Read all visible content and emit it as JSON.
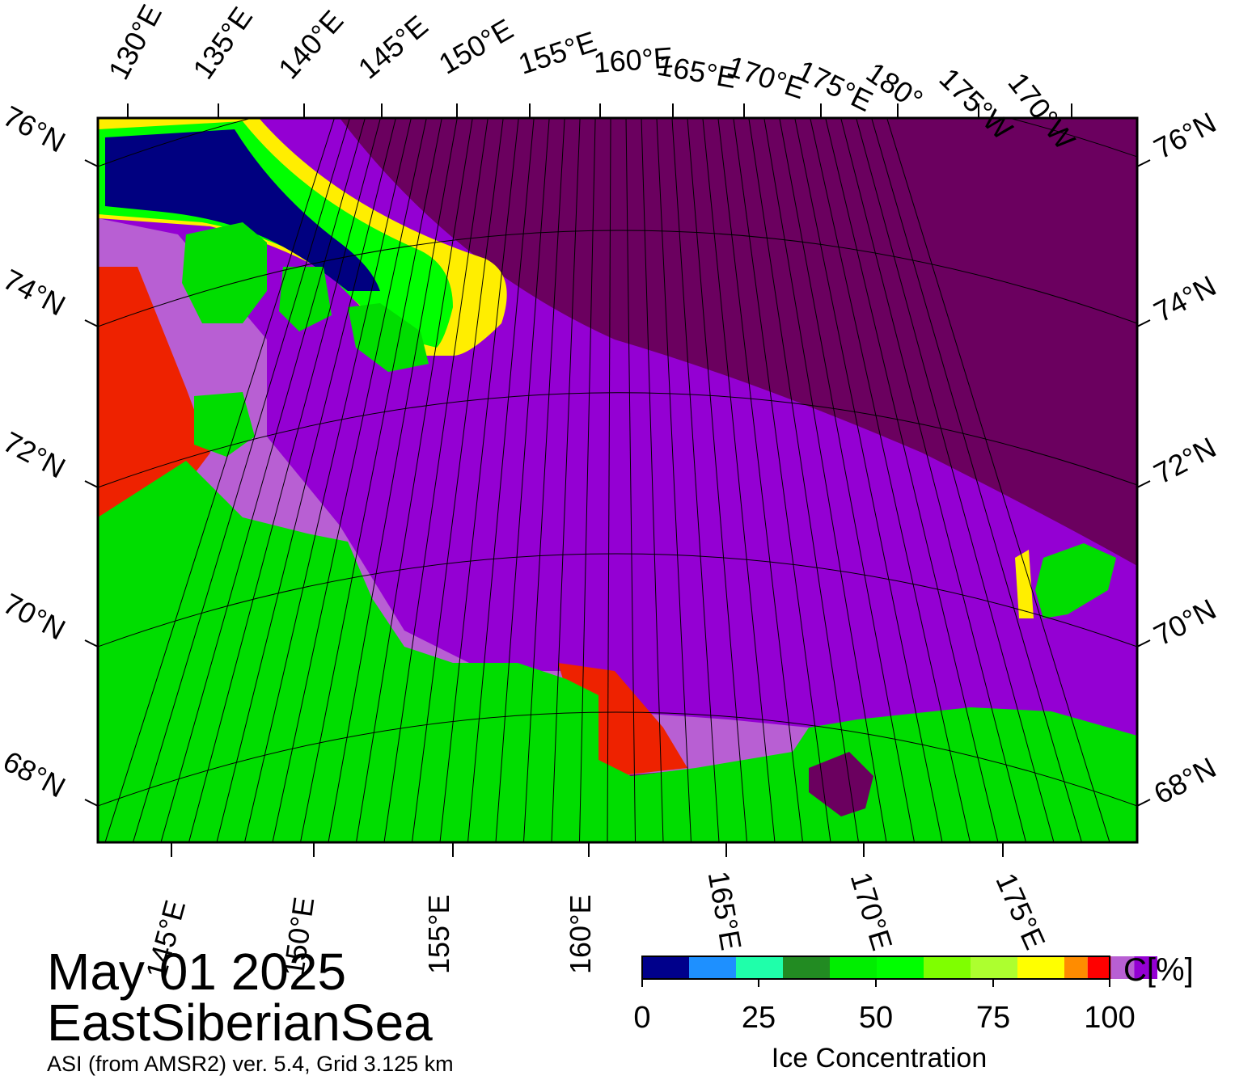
{
  "map": {
    "date": "May 01 2025",
    "region": "EastSiberianSea",
    "source": "ASI (from AMSR2) ver. 5.4,  Grid 3.125 km",
    "top_lon_labels": [
      "130°E",
      "135°E",
      "140°E",
      "145°E",
      "150°E",
      "155°E",
      "160°E",
      "165°E",
      "170°E",
      "175°E",
      "180°",
      "175°W",
      "170°W"
    ],
    "bottom_lon_labels": [
      "145°E",
      "150°E",
      "155°E",
      "160°E",
      "165°E",
      "170°E",
      "175°E"
    ],
    "left_lat_labels": [
      "76°N",
      "74°N",
      "72°N",
      "70°N",
      "68°N"
    ],
    "right_lat_labels": [
      "76°N",
      "74°N",
      "72°N",
      "70°N",
      "68°N"
    ],
    "colors": {
      "land": "#00dd00",
      "ice_high": "#6b005f",
      "ice_mid": "#9400d3",
      "ice_light": "#b85fd3",
      "ice_80": "#ee0000",
      "ice_75": "#ffee00",
      "open_water": "#000080",
      "gridline": "#000000"
    }
  },
  "colorbar": {
    "unit": "C[%]",
    "title": "Ice Concentration",
    "ticks": [
      "0",
      "25",
      "50",
      "75",
      "100"
    ],
    "colors": [
      "#00008b",
      "#1e90ff",
      "#1fffaa",
      "#228b22",
      "#00ee00",
      "#00ff00",
      "#7fff00",
      "#adff2f",
      "#ffff00",
      "#ff8c00",
      "#ff0000",
      "#b85fd3",
      "#9400d3",
      "#6b005f"
    ]
  }
}
